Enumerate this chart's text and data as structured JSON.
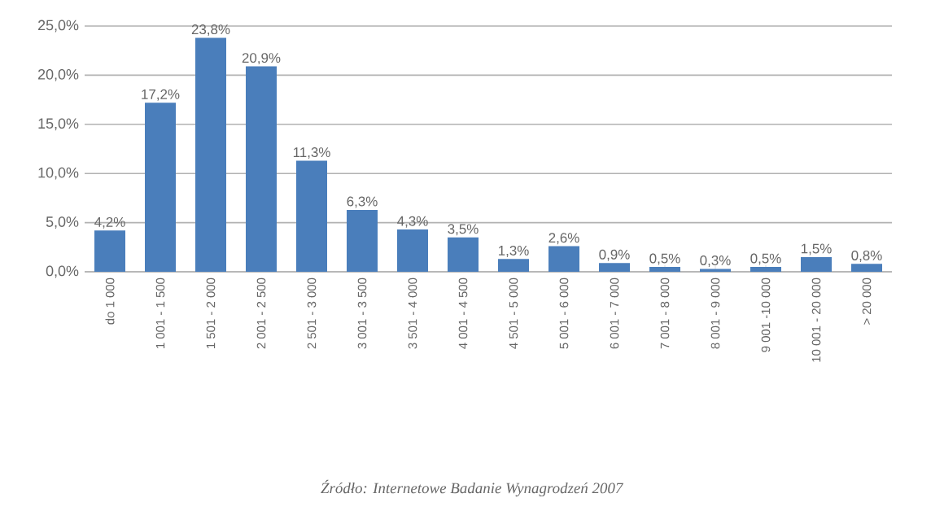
{
  "chart_data": {
    "type": "bar",
    "categories": [
      "do 1 000",
      "1 001 - 1 500",
      "1 501 - 2 000",
      "2 001 - 2 500",
      "2 501 - 3 000",
      "3 001 - 3 500",
      "3 501 - 4 000",
      "4 001 - 4 500",
      "4 501 - 5 000",
      "5 001 - 6 000",
      "6 001 - 7 000",
      "7 001 - 8 000",
      "8 001 - 9 000",
      "9 001 -10 000",
      "10 001 - 20 000",
      "> 20 000"
    ],
    "values": [
      4.2,
      17.2,
      23.8,
      20.9,
      11.3,
      6.3,
      4.3,
      3.5,
      1.3,
      2.6,
      0.9,
      0.5,
      0.3,
      0.5,
      1.5,
      0.8
    ],
    "value_labels": [
      "4,2%",
      "17,2%",
      "23,8%",
      "20,9%",
      "11,3%",
      "6,3%",
      "4,3%",
      "3,5%",
      "1,3%",
      "2,6%",
      "0,9%",
      "0,5%",
      "0,3%",
      "0,5%",
      "1,5%",
      "0,8%"
    ],
    "color": "#4a7ebb",
    "ylim": [
      0,
      25
    ],
    "yticks": [
      {
        "value": 0,
        "label": "0,0%"
      },
      {
        "value": 5,
        "label": "5,0%"
      },
      {
        "value": 10,
        "label": "10,0%"
      },
      {
        "value": 15,
        "label": "15,0%"
      },
      {
        "value": 20,
        "label": "20,0%"
      },
      {
        "value": 25,
        "label": "25,0%"
      }
    ],
    "grid": "y",
    "annotations": [
      "*Źródło: Internetowe Badanie Wynagrodzeń 2007*"
    ]
  }
}
